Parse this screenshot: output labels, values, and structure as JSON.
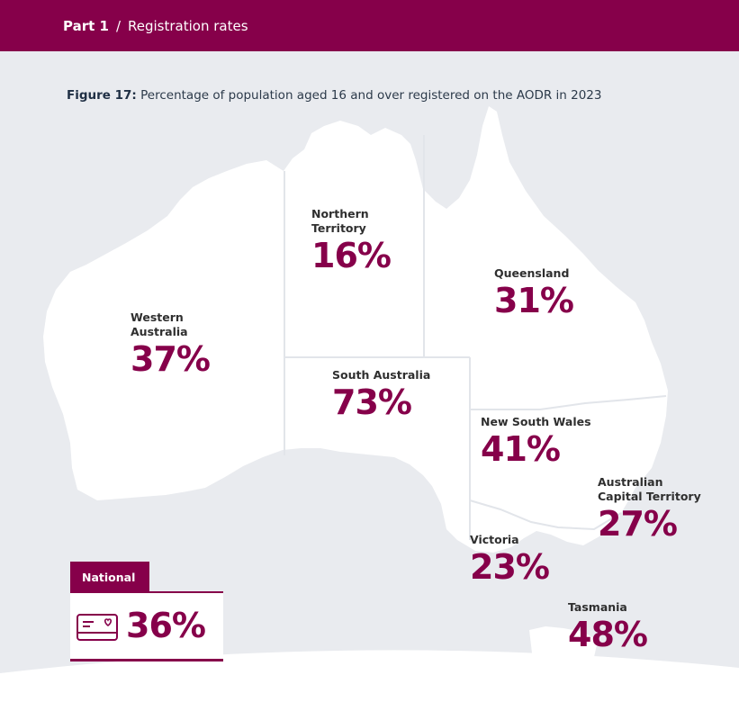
{
  "header": {
    "part": "Part 1",
    "separator": "/",
    "title": "Registration rates"
  },
  "caption": {
    "figure_label": "Figure 17:",
    "text": "Percentage of population aged 16 and over registered on the AODR in 2023"
  },
  "colors": {
    "brand": "#86004a",
    "land": "#ffffff",
    "sea": "#e9ebef",
    "borders": "#e2e5ea"
  },
  "regions": {
    "wa": {
      "name": "Western Australia",
      "line1": "Western",
      "line2": "Australia",
      "value": "37%"
    },
    "nt": {
      "name": "Northern Territory",
      "line1": "Northern",
      "line2": "Territory",
      "value": "16%"
    },
    "qld": {
      "name": "Queensland",
      "line1": "Queensland",
      "value": "31%"
    },
    "sa": {
      "name": "South Australia",
      "line1": "South Australia",
      "value": "73%"
    },
    "nsw": {
      "name": "New South Wales",
      "line1": "New South Wales",
      "value": "41%"
    },
    "act": {
      "name": "Australian Capital Territory",
      "line1": "Australian",
      "line2": "Capital Territory",
      "value": "27%"
    },
    "vic": {
      "name": "Victoria",
      "line1": "Victoria",
      "value": "23%"
    },
    "tas": {
      "name": "Tasmania",
      "line1": "Tasmania",
      "value": "48%"
    }
  },
  "national": {
    "label": "National",
    "value": "36%",
    "icon": "donor-card-icon"
  }
}
